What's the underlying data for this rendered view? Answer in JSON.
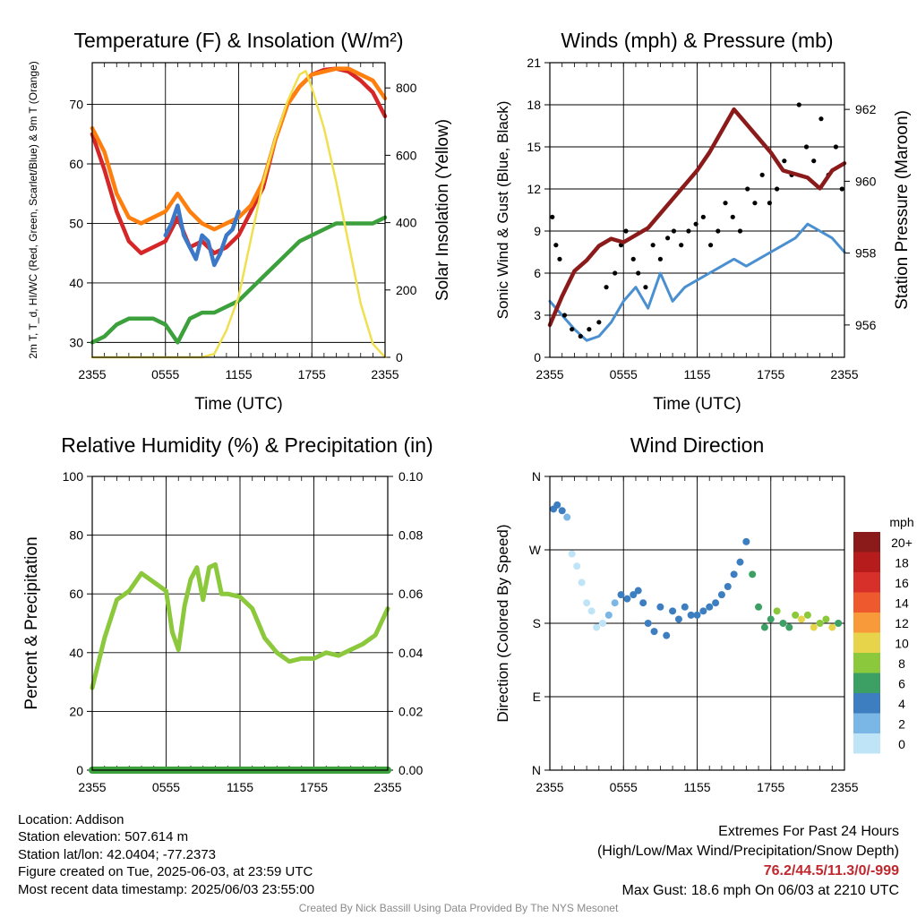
{
  "chart_data": [
    {
      "type": "line",
      "title": "Temperature (F) & Insolation (W/m²)",
      "xlabel": "Time (UTC)",
      "ylabel_left": "2m T, T_d, HI/WC (Red, Green, Scarlet/Blue) & 9m T (Orange)",
      "ylabel_right": "Solar Insolation (Yellow)",
      "x_ticks": [
        "2355",
        "0555",
        "1155",
        "1755",
        "2355"
      ],
      "x_range": [
        0,
        24
      ],
      "y_ticks": [
        30,
        40,
        50,
        60,
        70
      ],
      "ylim": [
        27.5,
        77
      ],
      "y2_ticks": [
        0,
        200,
        400,
        600,
        800
      ],
      "y2lim": [
        0,
        875
      ],
      "series": [
        {
          "color": "#d62728",
          "axis": "left",
          "x": [
            0,
            1,
            2,
            3,
            4,
            5,
            6,
            7,
            8,
            9,
            10,
            11,
            12,
            13,
            14,
            15,
            16,
            17,
            18,
            19,
            20,
            21,
            22,
            23,
            24
          ],
          "y": [
            65,
            59,
            52,
            47,
            45,
            46,
            47,
            51,
            46,
            47,
            45,
            46,
            48,
            52,
            56,
            64,
            70,
            73,
            75,
            75.8,
            76,
            75.5,
            74,
            72,
            68
          ]
        },
        {
          "color": "#ff7f0e",
          "axis": "left",
          "x": [
            0,
            1,
            2,
            3,
            4,
            5,
            6,
            7,
            8,
            9,
            10,
            11,
            12,
            13,
            14,
            15,
            16,
            17,
            18,
            19,
            20,
            21,
            22,
            23,
            24
          ],
          "y": [
            66,
            62,
            55,
            51,
            50,
            51,
            52,
            55,
            52,
            50,
            49,
            50,
            51,
            53,
            57,
            64,
            70,
            73,
            75,
            75.5,
            76,
            76,
            75,
            74,
            71
          ]
        },
        {
          "color": "#3c78c8",
          "axis": "left",
          "x": [
            6,
            6.5,
            7,
            7.5,
            8,
            8.5,
            9,
            9.5,
            10,
            10.5,
            11,
            11.5,
            12
          ],
          "y": [
            48,
            50,
            53,
            48,
            46,
            44,
            48,
            47,
            43,
            45,
            48,
            49,
            52
          ]
        },
        {
          "color": "#3ca03c",
          "axis": "left",
          "x": [
            0,
            1,
            2,
            3,
            4,
            5,
            6,
            7,
            8,
            9,
            10,
            11,
            12,
            13,
            14,
            15,
            16,
            17,
            18,
            19,
            20,
            21,
            22,
            23,
            24
          ],
          "y": [
            30,
            31,
            33,
            34,
            34,
            34,
            33,
            30,
            34,
            35,
            35,
            36,
            37,
            39,
            41,
            43,
            45,
            47,
            48,
            49,
            50,
            50,
            50,
            50,
            51
          ]
        },
        {
          "color": "#f0e050",
          "axis": "right",
          "x": [
            0,
            6,
            8,
            9,
            10,
            11,
            12,
            13,
            14,
            15,
            16,
            17,
            17.5,
            18,
            19,
            20,
            21,
            22,
            23,
            24
          ],
          "y": [
            0,
            0,
            0,
            0,
            10,
            80,
            180,
            350,
            520,
            650,
            760,
            840,
            850,
            800,
            680,
            520,
            340,
            160,
            40,
            0
          ]
        }
      ]
    },
    {
      "type": "line",
      "title": "Winds (mph) & Pressure (mb)",
      "xlabel": "Time (UTC)",
      "ylabel_left": "Sonic Wind & Gust (Blue, Black)",
      "ylabel_right": "Station Pressure (Maroon)",
      "x_ticks": [
        "2355",
        "0555",
        "1155",
        "1755",
        "2355"
      ],
      "x_range": [
        0,
        24
      ],
      "y_ticks": [
        0,
        3,
        6,
        9,
        12,
        15,
        18,
        21
      ],
      "ylim": [
        0,
        21
      ],
      "y2_ticks": [
        956,
        958,
        960,
        962
      ],
      "y2lim": [
        955.1,
        963.3
      ],
      "series": [
        {
          "color": "#4a90d0",
          "axis": "left",
          "x": [
            0,
            1,
            2,
            3,
            4,
            5,
            6,
            7,
            8,
            9,
            10,
            11,
            12,
            13,
            14,
            15,
            16,
            17,
            18,
            19,
            20,
            21,
            22,
            23,
            24
          ],
          "y": [
            4,
            3,
            2,
            1.2,
            1.5,
            2.5,
            4,
            5,
            3.5,
            6,
            4,
            5,
            5.5,
            6,
            6.5,
            7,
            6.5,
            7,
            7.5,
            8,
            8.5,
            9.5,
            9,
            8.5,
            7.5
          ]
        },
        {
          "color": "#8b1a1a",
          "axis": "right",
          "x": [
            0,
            1,
            2,
            3,
            4,
            5,
            6,
            7,
            8,
            9,
            10,
            11,
            12,
            13,
            14,
            15,
            16,
            17,
            18,
            19,
            20,
            21,
            22,
            23,
            24
          ],
          "y": [
            956,
            956.8,
            957.5,
            957.8,
            958.2,
            958.4,
            958.3,
            958.5,
            958.7,
            959.1,
            959.5,
            959.9,
            960.3,
            960.8,
            961.4,
            962,
            961.6,
            961.2,
            960.8,
            960.3,
            960.2,
            960.1,
            959.8,
            960.3,
            960.5
          ]
        }
      ],
      "gust_points": {
        "color": "#000000",
        "x": [
          0.2,
          0.5,
          0.8,
          1.2,
          1.8,
          2.5,
          3.2,
          4,
          4.6,
          5.3,
          5.8,
          6.2,
          6.8,
          7.2,
          7.8,
          8.4,
          9,
          9.6,
          10.1,
          10.7,
          11.3,
          11.9,
          12.5,
          13.1,
          13.7,
          14.3,
          14.9,
          15.5,
          16.1,
          16.7,
          17.3,
          17.9,
          18.5,
          19.1,
          19.7,
          20.3,
          20.9,
          21.5,
          22.1,
          22.7,
          23.3,
          23.8
        ],
        "y": [
          10,
          8,
          7,
          3,
          2,
          1.5,
          2,
          2.5,
          5,
          6,
          8,
          9,
          7,
          6,
          5,
          8,
          7,
          8.5,
          9,
          8,
          9,
          9.5,
          10,
          8,
          9,
          11,
          10,
          9,
          12,
          11,
          13,
          11,
          12,
          14,
          13,
          18,
          15,
          14,
          17,
          13,
          15,
          12
        ]
      }
    },
    {
      "type": "line",
      "title": "Relative Humidity (%) & Precipitation (in)",
      "xlabel": "",
      "ylabel_left": "Percent & Precipitation",
      "x_ticks": [
        "2355",
        "0555",
        "1155",
        "1755",
        "2355"
      ],
      "x_range": [
        0,
        24
      ],
      "y_ticks": [
        0,
        20,
        40,
        60,
        80,
        100
      ],
      "ylim": [
        0,
        100
      ],
      "y2_ticks": [
        "0.00",
        "0.02",
        "0.04",
        "0.06",
        "0.08",
        "0.10"
      ],
      "series": [
        {
          "color": "#8cc83c",
          "axis": "left",
          "x": [
            0,
            1,
            2,
            3,
            4,
            5,
            6,
            6.5,
            7,
            7.5,
            8,
            8.5,
            9,
            9.5,
            10,
            10.5,
            11,
            12,
            13,
            14,
            15,
            16,
            17,
            18,
            19,
            20,
            21,
            22,
            23,
            24
          ],
          "y": [
            28,
            45,
            58,
            61,
            67,
            64,
            61,
            47,
            41,
            56,
            65,
            69,
            58,
            69,
            70,
            60,
            60,
            59,
            55,
            45,
            40,
            37,
            38,
            38,
            40,
            39,
            41,
            43,
            46,
            55
          ]
        },
        {
          "color": "#3ca03c",
          "axis": "right",
          "x": [
            0,
            24
          ],
          "y": [
            0,
            0
          ]
        }
      ]
    },
    {
      "type": "scatter",
      "title": "Wind Direction",
      "xlabel": "",
      "ylabel_left": "Direction (Colored By Speed)",
      "x_ticks": [
        "2355",
        "0555",
        "1155",
        "1755",
        "2355"
      ],
      "x_range": [
        0,
        24
      ],
      "y_ticks": [
        "N",
        "E",
        "S",
        "W",
        "N"
      ],
      "ylim": [
        0,
        360
      ],
      "colorbar": {
        "title": "mph",
        "labels": [
          "20+",
          "18",
          "16",
          "14",
          "12",
          "10",
          "8",
          "6",
          "4",
          "2",
          "0"
        ],
        "colors": [
          "#8b1a1a",
          "#b71c1c",
          "#d7302a",
          "#ee5a2e",
          "#f99a3a",
          "#e8d44a",
          "#8cc83c",
          "#3ca064",
          "#3c7ec0",
          "#7ab6e6",
          "#bfe4f8"
        ]
      },
      "points": {
        "x": [
          0.3,
          0.6,
          1,
          1.4,
          1.8,
          2.2,
          2.6,
          3,
          3.4,
          3.8,
          4.3,
          4.8,
          5.3,
          5.8,
          6.3,
          6.8,
          7.2,
          7.6,
          8,
          8.5,
          9,
          9.5,
          10,
          10.5,
          11,
          11.5,
          12,
          12.5,
          13,
          13.5,
          14,
          14.5,
          15,
          15.5,
          16,
          16.5,
          17,
          17.5,
          18,
          18.5,
          19,
          19.5,
          20,
          20.5,
          21,
          21.5,
          22,
          22.5,
          23,
          23.5
        ],
        "y": [
          320,
          325,
          318,
          310,
          265,
          250,
          230,
          205,
          195,
          175,
          180,
          190,
          205,
          215,
          210,
          215,
          220,
          205,
          180,
          170,
          200,
          165,
          195,
          185,
          200,
          190,
          190,
          195,
          200,
          205,
          215,
          225,
          240,
          255,
          280,
          240,
          200,
          175,
          185,
          195,
          180,
          175,
          190,
          185,
          190,
          175,
          180,
          185,
          175,
          180
        ],
        "speed": [
          4,
          4,
          4,
          3,
          1,
          1,
          1,
          1,
          1,
          1,
          1,
          2,
          3,
          4,
          4,
          4,
          4,
          4,
          4,
          4,
          4,
          4,
          4,
          4,
          4,
          4,
          4,
          4,
          5,
          5,
          4,
          4,
          5,
          5,
          4,
          7,
          7,
          7,
          7,
          8,
          7,
          7,
          8,
          10,
          9,
          10,
          9,
          9,
          10,
          7
        ]
      }
    }
  ],
  "footer": {
    "location": "Location: Addison",
    "elevation": "Station elevation: 507.614 m",
    "latlon": "Station lat/lon: 42.0404; -77.2373",
    "created": "Figure created on Tue, 2025-06-03, at 23:59 UTC",
    "recent": "Most recent data timestamp: 2025/06/03 23:55:00"
  },
  "extremes": {
    "title": "Extremes For Past 24 Hours",
    "subtitle": "(High/Low/Max Wind/Precipitation/Snow Depth)",
    "values": "76.2/44.5/11.3/0/-999",
    "gust": "Max Gust: 18.6 mph On 06/03 at 2210 UTC"
  },
  "credit": "Created By Nick Bassill Using Data Provided By The NYS Mesonet"
}
